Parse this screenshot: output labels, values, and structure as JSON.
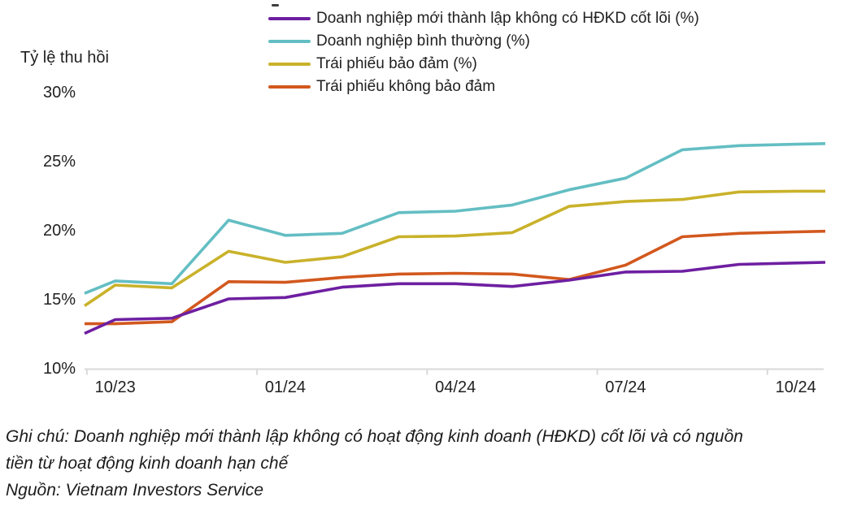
{
  "figure": {
    "y_axis_title": "Tỷ lệ thu hồi",
    "note_line1": "Ghi chú: Doanh nghiệp mới thành lập không có hoạt động kinh doanh (HĐKD) cốt lõi và có nguồn",
    "note_line2": "tiền từ hoạt động kinh doanh hạn chế",
    "source": "Nguồn: Vietnam Investors Service"
  },
  "colors": {
    "purple": "#6E1FA1",
    "teal": "#63BEC3",
    "yellow": "#C9B22A",
    "orange": "#D2581E",
    "axis_line": "#D9D9D9",
    "text": "#212121"
  },
  "chart_data": {
    "type": "line",
    "title": "",
    "ylabel": "Tỷ lệ thu hồi",
    "xlabel": "",
    "grid": false,
    "legend_position": "top",
    "ylim": [
      10,
      30
    ],
    "yticks": [
      10,
      15,
      20,
      25,
      30
    ],
    "ytick_labels": [
      "10%",
      "15%",
      "20%",
      "25%",
      "30%"
    ],
    "months": [
      "10/23",
      "11/23",
      "12/23",
      "01/24",
      "02/24",
      "03/24",
      "04/24",
      "05/24",
      "06/24",
      "07/24",
      "08/24",
      "09/24",
      "10/24"
    ],
    "x_tick_labels": [
      "10/23",
      "01/24",
      "04/24",
      "07/24",
      "10/24"
    ],
    "x_tick_month_indices": [
      0,
      3,
      6,
      9,
      12
    ],
    "series": [
      {
        "name": "Doanh nghiệp bình thường (%)",
        "legend_order": 2,
        "color": "#63BEC3",
        "edge_left_value": 15.4,
        "values": [
          16.3,
          16.1,
          20.7,
          19.6,
          19.75,
          21.25,
          21.35,
          21.8,
          22.9,
          23.75,
          25.8,
          26.1,
          26.2
        ],
        "edge_right_value": 26.25
      },
      {
        "name": "Trái phiếu bảo đảm (%)",
        "legend_order": 3,
        "color": "#C9B22A",
        "edge_left_value": 14.5,
        "values": [
          16.0,
          15.8,
          18.45,
          17.65,
          18.05,
          19.5,
          19.55,
          19.8,
          21.7,
          22.05,
          22.2,
          22.75,
          22.8
        ],
        "edge_right_value": 22.8
      },
      {
        "name": "Trái phiếu không bảo đảm",
        "legend_order": 4,
        "color": "#D2581E",
        "edge_left_value": 13.2,
        "values": [
          13.2,
          13.35,
          16.25,
          16.2,
          16.55,
          16.8,
          16.85,
          16.8,
          16.4,
          17.45,
          19.5,
          19.75,
          19.85
        ],
        "edge_right_value": 19.9
      },
      {
        "name": "Doanh nghiệp mới thành lập không có HĐKD cốt lõi (%)",
        "legend_order": 1,
        "color": "#6E1FA1",
        "edge_left_value": 12.5,
        "values": [
          13.5,
          13.6,
          15.0,
          15.1,
          15.85,
          16.1,
          16.1,
          15.9,
          16.35,
          16.95,
          17.0,
          17.5,
          17.6
        ],
        "edge_right_value": 17.65
      }
    ]
  }
}
